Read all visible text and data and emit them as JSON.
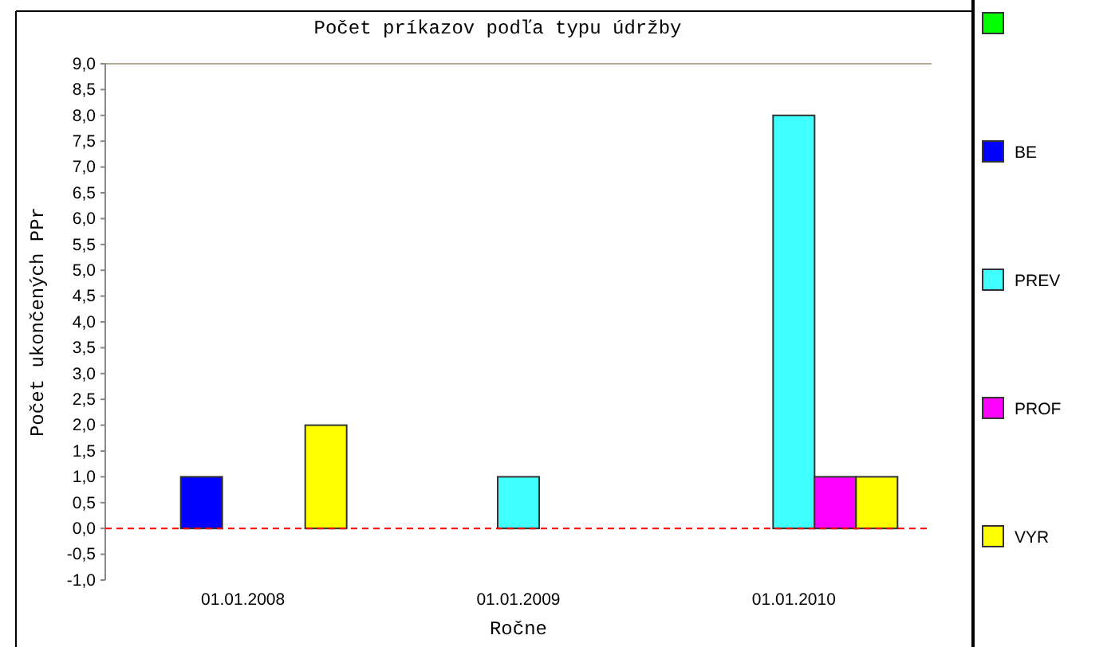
{
  "chart_data": {
    "type": "bar",
    "title": "Počet príkazov podľa typu údržby",
    "xlabel": "Ročne",
    "ylabel": "Počet ukončených PPr",
    "categories": [
      "01.01.2008",
      "01.01.2009",
      "01.01.2010"
    ],
    "series": [
      {
        "color": "#00ff00",
        "values": [
          0,
          0,
          0
        ]
      },
      {
        "name": "BE",
        "color": "#0000ff",
        "values": [
          1,
          0,
          0
        ]
      },
      {
        "name": "PREV",
        "color": "#40ffff",
        "values": [
          0,
          1,
          8
        ]
      },
      {
        "name": "PROF",
        "color": "#ff00ff",
        "values": [
          0,
          0,
          1
        ]
      },
      {
        "name": "VYR",
        "color": "#ffff00",
        "values": [
          2,
          0,
          1
        ]
      }
    ],
    "ylim": [
      -1,
      9
    ],
    "yticks": [
      {
        "value": -1,
        "label": "-1,0"
      },
      {
        "value": -0.5,
        "label": "-0,5"
      },
      {
        "value": 0,
        "label": "0,0"
      },
      {
        "value": 0.5,
        "label": "0,5"
      },
      {
        "value": 1,
        "label": "1,0"
      },
      {
        "value": 1.5,
        "label": "1,5"
      },
      {
        "value": 2,
        "label": "2,0"
      },
      {
        "value": 2.5,
        "label": "2,5"
      },
      {
        "value": 3,
        "label": "3,0"
      },
      {
        "value": 3.5,
        "label": "3,5"
      },
      {
        "value": 4,
        "label": "4,0"
      },
      {
        "value": 4.5,
        "label": "4,5"
      },
      {
        "value": 5,
        "label": "5,0"
      },
      {
        "value": 5.5,
        "label": "5,5"
      },
      {
        "value": 6,
        "label": "6,0"
      },
      {
        "value": 6.5,
        "label": "6,5"
      },
      {
        "value": 7,
        "label": "7,0"
      },
      {
        "value": 7.5,
        "label": "7,5"
      },
      {
        "value": 8,
        "label": "8,0"
      },
      {
        "value": 8.5,
        "label": "8,5"
      },
      {
        "value": 9,
        "label": "9,0"
      }
    ],
    "ref_lines": [
      {
        "axis": "y",
        "value": 0,
        "color": "#ff0000",
        "line_style": "dashed"
      }
    ],
    "legend": "right",
    "grid": false
  }
}
